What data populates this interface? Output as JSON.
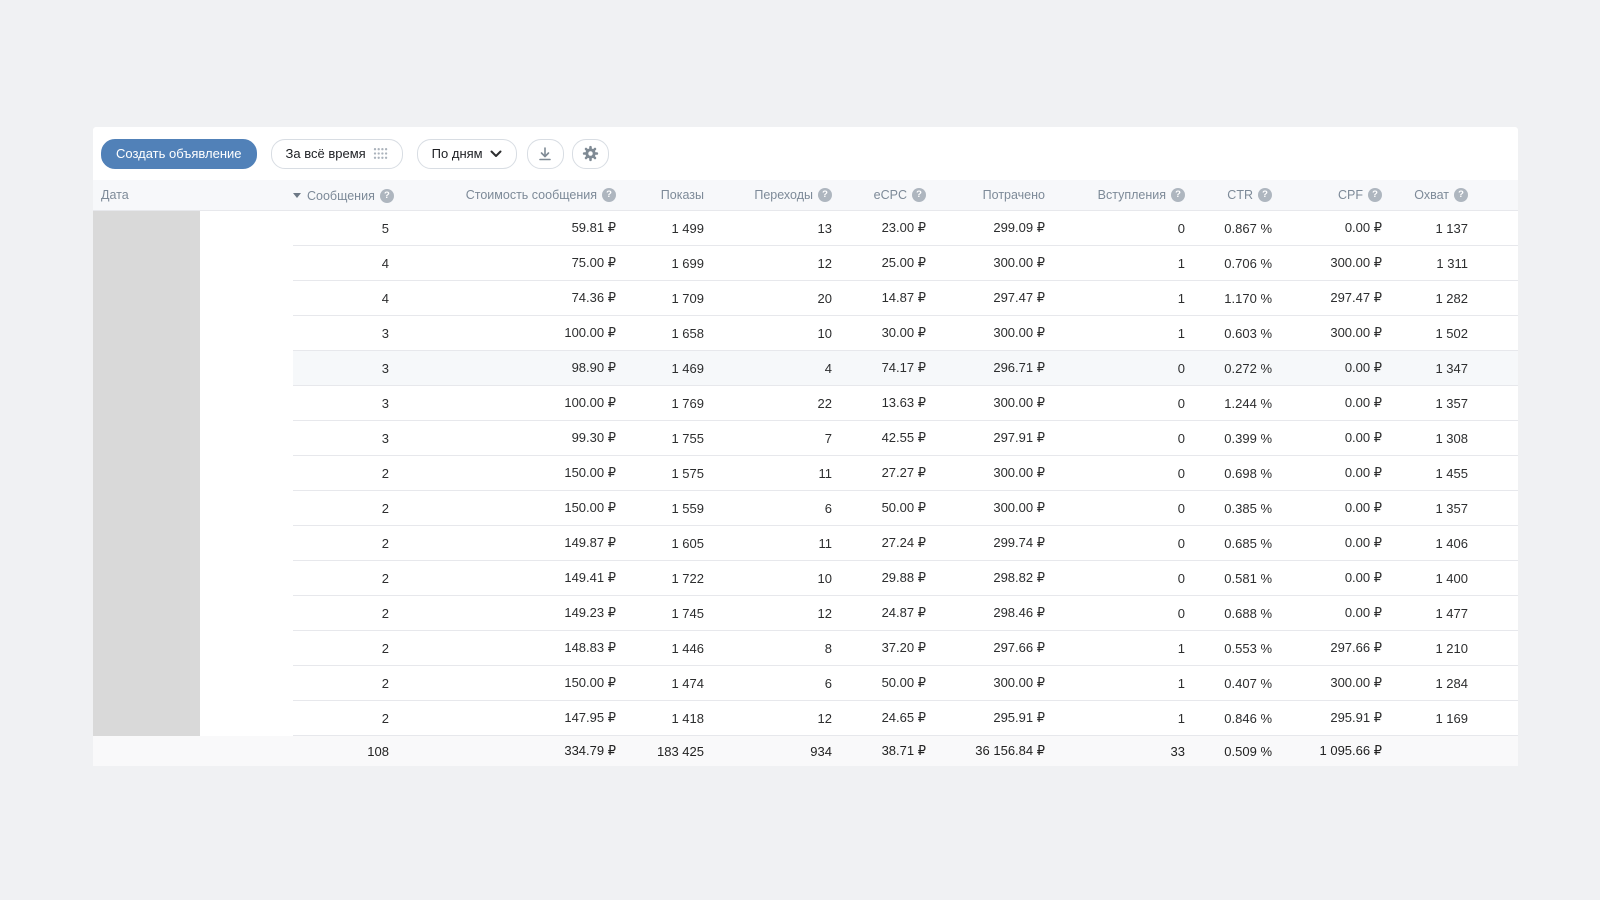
{
  "toolbar": {
    "create_button_label": "Создать объявление",
    "period_button_label": "За всё время",
    "grouping_button_label": "По дням"
  },
  "table": {
    "columns": [
      {
        "key": "date",
        "label": "Дата",
        "help": false,
        "sorted": false
      },
      {
        "key": "messages",
        "label": "Сообщения",
        "help": true,
        "sorted": "desc"
      },
      {
        "key": "message_cost",
        "label": "Стоимость сообщения",
        "help": true,
        "sorted": false
      },
      {
        "key": "impressions",
        "label": "Показы",
        "help": false,
        "sorted": false
      },
      {
        "key": "clicks",
        "label": "Переходы",
        "help": true,
        "sorted": false
      },
      {
        "key": "ecpc",
        "label": "eCPC",
        "help": true,
        "sorted": false
      },
      {
        "key": "spent",
        "label": "Потрачено",
        "help": false,
        "sorted": false
      },
      {
        "key": "joins",
        "label": "Вступления",
        "help": true,
        "sorted": false
      },
      {
        "key": "ctr",
        "label": "CTR",
        "help": true,
        "sorted": false
      },
      {
        "key": "cpf",
        "label": "CPF",
        "help": true,
        "sorted": false
      },
      {
        "key": "reach",
        "label": "Охват",
        "help": true,
        "sorted": false
      }
    ],
    "date_column_redacted": true,
    "highlighted_row_index": 4,
    "rows": [
      [
        "",
        "5",
        "59.81 ₽",
        "1 499",
        "13",
        "23.00 ₽",
        "299.09 ₽",
        "0",
        "0.867 %",
        "0.00 ₽",
        "1 137"
      ],
      [
        "",
        "4",
        "75.00 ₽",
        "1 699",
        "12",
        "25.00 ₽",
        "300.00 ₽",
        "1",
        "0.706 %",
        "300.00 ₽",
        "1 311"
      ],
      [
        "",
        "4",
        "74.36 ₽",
        "1 709",
        "20",
        "14.87 ₽",
        "297.47 ₽",
        "1",
        "1.170 %",
        "297.47 ₽",
        "1 282"
      ],
      [
        "",
        "3",
        "100.00 ₽",
        "1 658",
        "10",
        "30.00 ₽",
        "300.00 ₽",
        "1",
        "0.603 %",
        "300.00 ₽",
        "1 502"
      ],
      [
        "",
        "3",
        "98.90 ₽",
        "1 469",
        "4",
        "74.17 ₽",
        "296.71 ₽",
        "0",
        "0.272 %",
        "0.00 ₽",
        "1 347"
      ],
      [
        "",
        "3",
        "100.00 ₽",
        "1 769",
        "22",
        "13.63 ₽",
        "300.00 ₽",
        "0",
        "1.244 %",
        "0.00 ₽",
        "1 357"
      ],
      [
        "",
        "3",
        "99.30 ₽",
        "1 755",
        "7",
        "42.55 ₽",
        "297.91 ₽",
        "0",
        "0.399 %",
        "0.00 ₽",
        "1 308"
      ],
      [
        "",
        "2",
        "150.00 ₽",
        "1 575",
        "11",
        "27.27 ₽",
        "300.00 ₽",
        "0",
        "0.698 %",
        "0.00 ₽",
        "1 455"
      ],
      [
        "",
        "2",
        "150.00 ₽",
        "1 559",
        "6",
        "50.00 ₽",
        "300.00 ₽",
        "0",
        "0.385 %",
        "0.00 ₽",
        "1 357"
      ],
      [
        "",
        "2",
        "149.87 ₽",
        "1 605",
        "11",
        "27.24 ₽",
        "299.74 ₽",
        "0",
        "0.685 %",
        "0.00 ₽",
        "1 406"
      ],
      [
        "",
        "2",
        "149.41 ₽",
        "1 722",
        "10",
        "29.88 ₽",
        "298.82 ₽",
        "0",
        "0.581 %",
        "0.00 ₽",
        "1 400"
      ],
      [
        "",
        "2",
        "149.23 ₽",
        "1 745",
        "12",
        "24.87 ₽",
        "298.46 ₽",
        "0",
        "0.688 %",
        "0.00 ₽",
        "1 477"
      ],
      [
        "",
        "2",
        "148.83 ₽",
        "1 446",
        "8",
        "37.20 ₽",
        "297.66 ₽",
        "1",
        "0.553 %",
        "297.66 ₽",
        "1 210"
      ],
      [
        "",
        "2",
        "150.00 ₽",
        "1 474",
        "6",
        "50.00 ₽",
        "300.00 ₽",
        "1",
        "0.407 %",
        "300.00 ₽",
        "1 284"
      ],
      [
        "",
        "2",
        "147.95 ₽",
        "1 418",
        "12",
        "24.65 ₽",
        "295.91 ₽",
        "1",
        "0.846 %",
        "295.91 ₽",
        "1 169"
      ]
    ],
    "totals": [
      "",
      "108",
      "334.79 ₽",
      "183 425",
      "934",
      "38.71 ₽",
      "36 156.84 ₽",
      "33",
      "0.509 %",
      "1 095.66 ₽",
      ""
    ]
  },
  "icons": {
    "help_glyph": "?"
  },
  "colors": {
    "accent": "#5181b8",
    "redaction": "#d9d9d9",
    "header_text": "#7d8a98",
    "row_highlight": "#f6f8fa",
    "total_bg": "#f9f9fa"
  }
}
